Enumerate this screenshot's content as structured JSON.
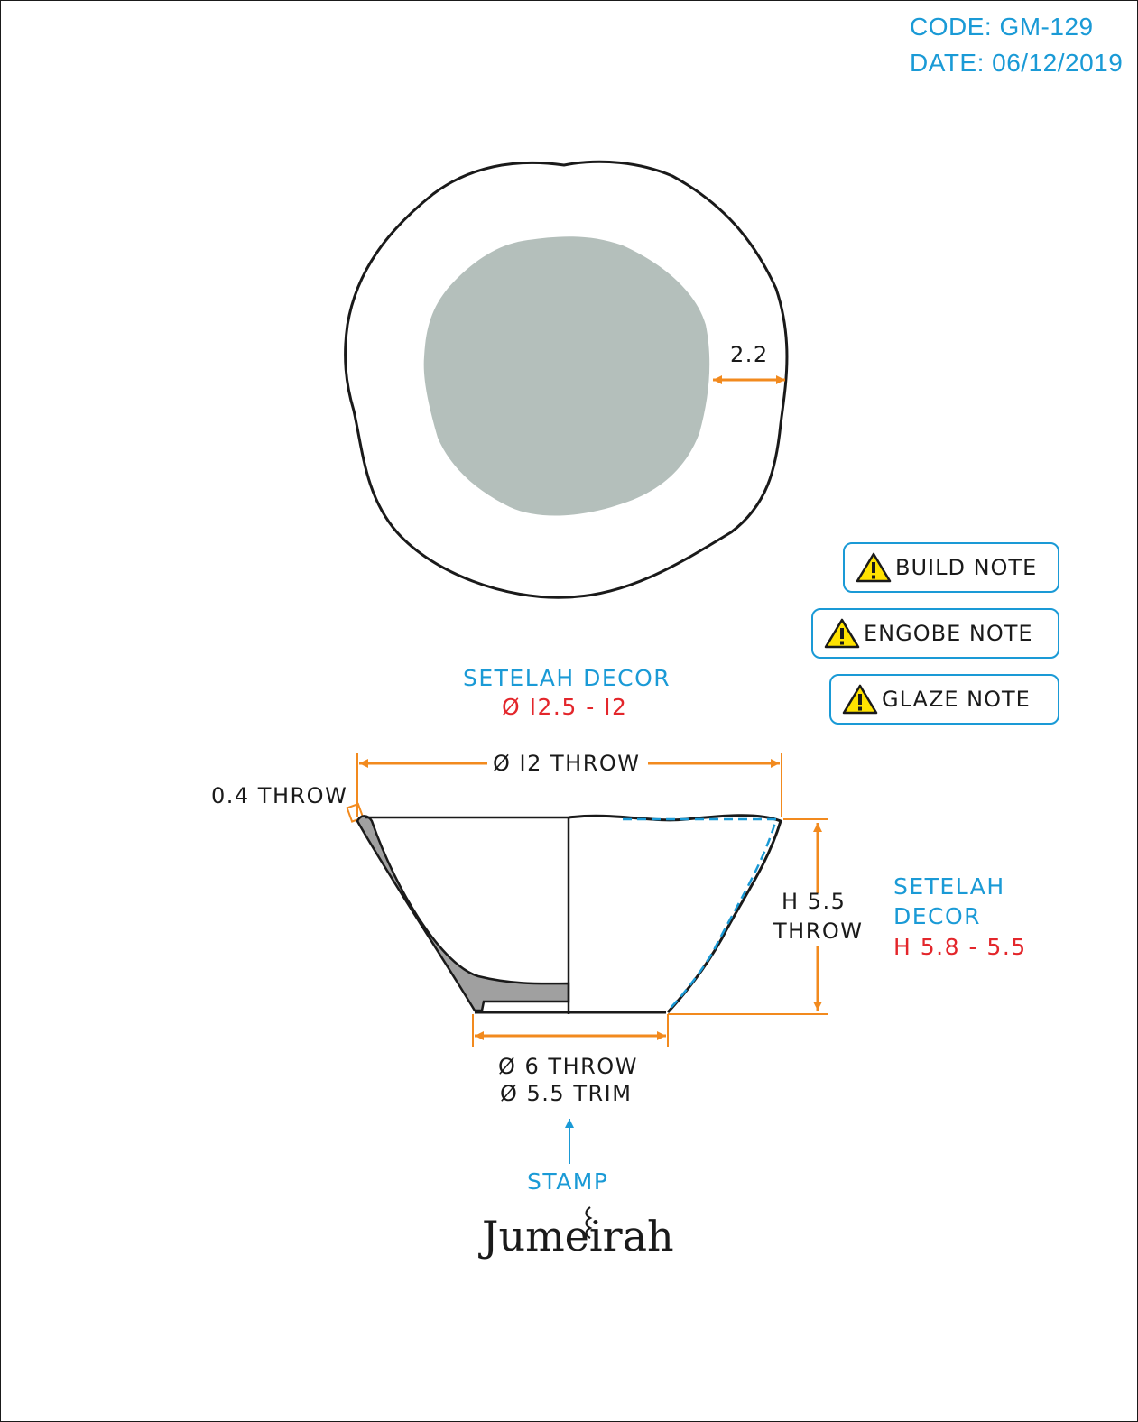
{
  "header": {
    "code": "CODE: GM-129",
    "date": "DATE: 06/12/2019"
  },
  "notes": [
    {
      "label": "BUILD NOTE"
    },
    {
      "label": "ENGOBE NOTE"
    },
    {
      "label": "GLAZE NOTE"
    }
  ],
  "top_view": {
    "rim_width": "2.2"
  },
  "side_view": {
    "top_decor_label": "SETELAH DECOR",
    "top_decor_range": "Ø I2.5 - I2",
    "throw_diameter": "Ø I2 THROW",
    "wall_thickness": "0.4 THROW",
    "height_line1": "H 5.5",
    "height_line2": "THROW",
    "side_decor_line1": "SETELAH",
    "side_decor_line2": "DECOR",
    "side_decor_range": "H 5.8 - 5.5",
    "foot_throw": "Ø 6 THROW",
    "foot_trim": "Ø 5.5 TRIM",
    "stamp_label": "STAMP"
  },
  "brand": {
    "logo_text": "Jumeirah"
  },
  "colors": {
    "accent_blue": "#1a9ad6",
    "dimension_orange": "#f28a1e",
    "decor_red": "#e3262b",
    "glaze_fill": "#b4bfbb",
    "section_fill": "#a0a0a0"
  }
}
